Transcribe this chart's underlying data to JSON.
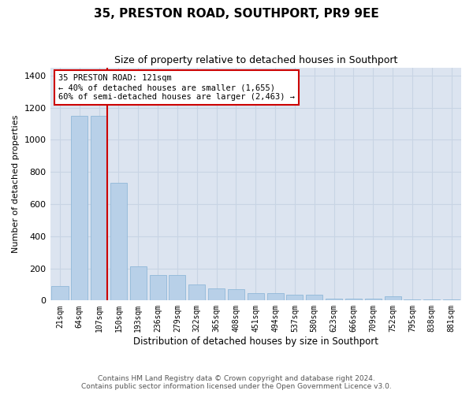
{
  "title": "35, PRESTON ROAD, SOUTHPORT, PR9 9EE",
  "subtitle": "Size of property relative to detached houses in Southport",
  "xlabel": "Distribution of detached houses by size in Southport",
  "ylabel": "Number of detached properties",
  "footer_line1": "Contains HM Land Registry data © Crown copyright and database right 2024.",
  "footer_line2": "Contains public sector information licensed under the Open Government Licence v3.0.",
  "bar_labels": [
    "21sqm",
    "64sqm",
    "107sqm",
    "150sqm",
    "193sqm",
    "236sqm",
    "279sqm",
    "322sqm",
    "365sqm",
    "408sqm",
    "451sqm",
    "494sqm",
    "537sqm",
    "580sqm",
    "623sqm",
    "666sqm",
    "709sqm",
    "752sqm",
    "795sqm",
    "838sqm",
    "881sqm"
  ],
  "bar_heights": [
    90,
    1150,
    1150,
    730,
    210,
    160,
    160,
    100,
    75,
    70,
    45,
    45,
    38,
    35,
    10,
    10,
    10,
    25,
    5,
    5,
    5
  ],
  "bar_color": "#b8d0e8",
  "bar_edge_color": "#90b8d8",
  "grid_color": "#c8d4e4",
  "background_color": "#dce4f0",
  "red_line_color": "#cc0000",
  "annotation_text": "35 PRESTON ROAD: 121sqm\n← 40% of detached houses are smaller (1,655)\n60% of semi-detached houses are larger (2,463) →",
  "annotation_box_color": "#ffffff",
  "annotation_box_edge": "#cc0000",
  "ylim": [
    0,
    1450
  ],
  "yticks": [
    0,
    200,
    400,
    600,
    800,
    1000,
    1200,
    1400
  ]
}
